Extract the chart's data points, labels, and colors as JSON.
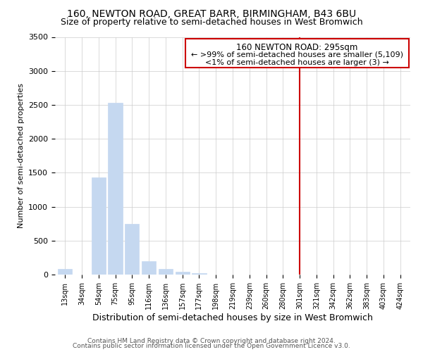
{
  "title1": "160, NEWTON ROAD, GREAT BARR, BIRMINGHAM, B43 6BU",
  "title2": "Size of property relative to semi-detached houses in West Bromwich",
  "xlabel": "Distribution of semi-detached houses by size in West Bromwich",
  "ylabel": "Number of semi-detached properties",
  "footer1": "Contains HM Land Registry data © Crown copyright and database right 2024.",
  "footer2": "Contains public sector information licensed under the Open Government Licence v3.0.",
  "categories": [
    "13sqm",
    "34sqm",
    "54sqm",
    "75sqm",
    "95sqm",
    "116sqm",
    "136sqm",
    "157sqm",
    "177sqm",
    "198sqm",
    "219sqm",
    "239sqm",
    "260sqm",
    "280sqm",
    "301sqm",
    "321sqm",
    "342sqm",
    "362sqm",
    "383sqm",
    "403sqm",
    "424sqm"
  ],
  "values": [
    80,
    0,
    1430,
    2530,
    750,
    200,
    80,
    40,
    20,
    5,
    0,
    0,
    0,
    0,
    0,
    0,
    0,
    0,
    0,
    0,
    0
  ],
  "bar_color": "#c5d8f0",
  "annotation_title": "160 NEWTON ROAD: 295sqm",
  "annotation_line1": "← >99% of semi-detached houses are smaller (5,109)",
  "annotation_line2": "<1% of semi-detached houses are larger (3) →",
  "annotation_box_color": "#ffffff",
  "annotation_border_color": "#cc0000",
  "vline_color": "#cc0000",
  "vline_x": 14,
  "ylim": [
    0,
    3500
  ],
  "yticks": [
    0,
    500,
    1000,
    1500,
    2000,
    2500,
    3000,
    3500
  ],
  "bg_color": "#ffffff",
  "grid_color": "#cccccc",
  "title1_fontsize": 10,
  "title2_fontsize": 9
}
